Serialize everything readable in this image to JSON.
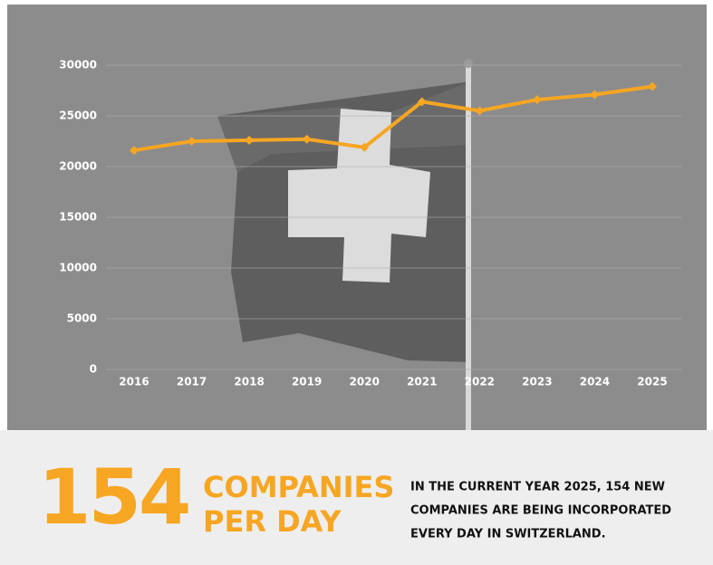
{
  "chart_data": {
    "type": "line",
    "categories": [
      "2016",
      "2017",
      "2018",
      "2019",
      "2020",
      "2021",
      "2022",
      "2023",
      "2024",
      "2025"
    ],
    "series": [
      {
        "color": "#f6a623",
        "values": [
          21600,
          22500,
          22600,
          22700,
          21900,
          26400,
          25500,
          26600,
          27100,
          27900
        ]
      }
    ],
    "ylim": [
      0,
      30000
    ],
    "yticks": [
      0,
      5000,
      10000,
      15000,
      20000,
      25000,
      30000
    ],
    "grid": true,
    "annotations": [
      "154",
      "COMPANIES",
      "PER DAY",
      "IN THE CURRENT YEAR 2025, 154 NEW",
      "COMPANIES ARE BEING INCORPORATED",
      "EVERY DAY IN SWITZERLAND."
    ]
  }
}
